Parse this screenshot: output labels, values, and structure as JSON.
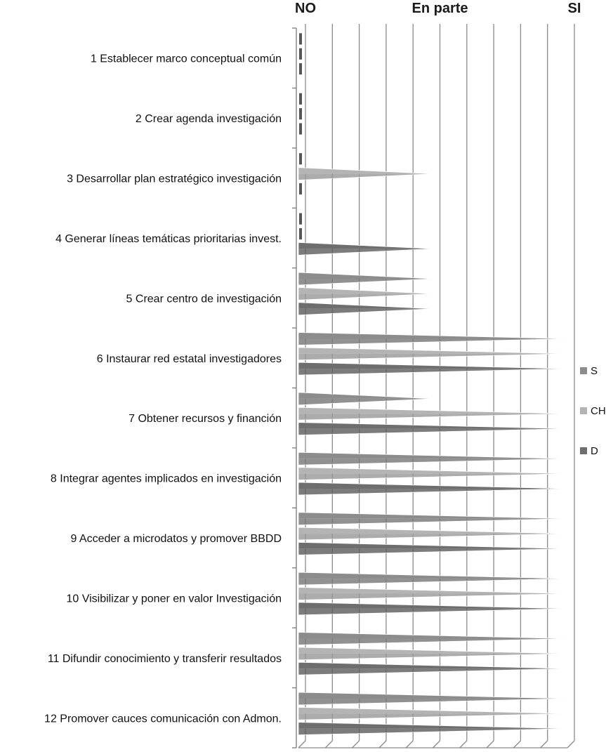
{
  "chart_data": {
    "type": "bar",
    "orientation": "horizontal",
    "style": "3d-cone",
    "title": "",
    "xlabel": "",
    "ylabel": "",
    "x_tick_labels": [
      "NO",
      "En parte",
      "SI"
    ],
    "xlim": [
      0,
      2
    ],
    "categories": [
      "1 Establecer marco conceptual común",
      "2 Crear agenda investigación",
      "3 Desarrollar plan estratégico investigación",
      "4 Generar líneas temáticas prioritarias invest.",
      "5 Crear centro de investigación",
      "6 Instaurar red estatal investigadores",
      "7 Obtener recursos y financión",
      "8 Integrar agentes implicados en investigación",
      "9 Acceder a microdatos y promover BBDD",
      "10 Visibilizar y poner en valor Investigación",
      "11 Difundir conocimiento y transferir resultados",
      "12 Promover cauces comunicación con Admon."
    ],
    "series": [
      {
        "name": "S",
        "color": "#8c8c8c",
        "values": [
          0,
          0,
          0,
          0,
          1,
          2,
          1,
          2,
          2,
          2,
          2,
          2
        ]
      },
      {
        "name": "CH",
        "color": "#b4b4b4",
        "values": [
          0,
          0,
          1,
          0,
          1,
          2,
          2,
          2,
          2,
          2,
          2,
          2
        ]
      },
      {
        "name": "D",
        "color": "#6e6e6e",
        "values": [
          0,
          0,
          0,
          1,
          1,
          2,
          2,
          2,
          2,
          2,
          2,
          2
        ]
      }
    ],
    "legend_position": "right",
    "grid": true
  }
}
